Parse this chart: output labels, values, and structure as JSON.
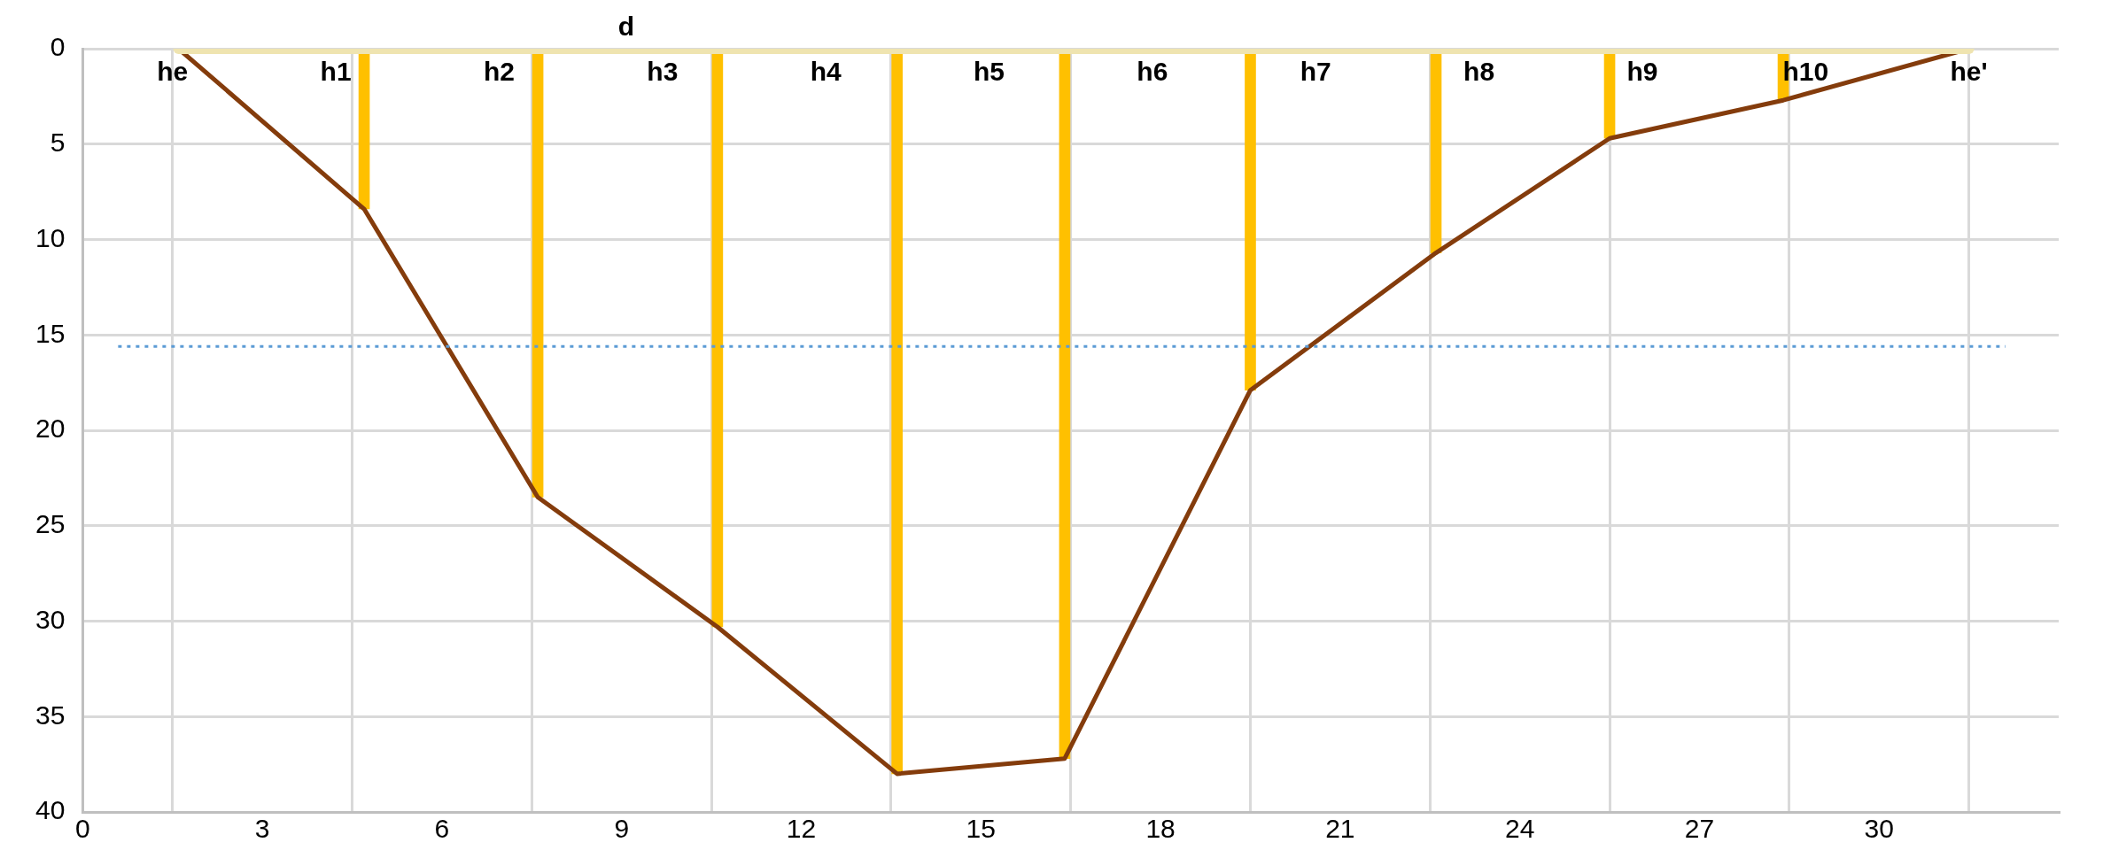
{
  "chart_data": {
    "type": "line",
    "xlim": [
      0,
      33
    ],
    "xticks": [
      0,
      3,
      6,
      9,
      12,
      15,
      18,
      21,
      24,
      27,
      30
    ],
    "ylim": [
      40,
      0
    ],
    "yticks": [
      0,
      5,
      10,
      15,
      20,
      25,
      30,
      35,
      40
    ],
    "grid": true,
    "legend": false,
    "series": [
      {
        "type": "bar",
        "color": "#ffc000",
        "x": [
          4.7,
          7.6,
          10.6,
          13.6,
          16.4,
          19.5,
          22.6,
          25.5,
          28.4
        ],
        "values": [
          8.4,
          23.5,
          30.3,
          38,
          37.2,
          17.9,
          10.7,
          4.7,
          2.7
        ]
      },
      {
        "name": "d",
        "color": "#efe4b0",
        "x": [
          1.6,
          31.5
        ],
        "values": [
          0,
          0
        ]
      },
      {
        "color": "#843c0c",
        "x": [
          1.6,
          4.7,
          7.6,
          10.6,
          13.6,
          16.4,
          19.5,
          22.6,
          25.5,
          28.4,
          31.5
        ],
        "values": [
          0,
          8.4,
          23.5,
          30.3,
          38,
          37.2,
          17.9,
          10.7,
          4.7,
          2.7,
          0
        ]
      }
    ],
    "ref_lines": [
      {
        "axis": "y",
        "value": 15.6,
        "color": "#5b9bd5",
        "line_style": "dotted"
      }
    ],
    "annotations": [
      "he",
      "h1",
      "h2",
      "h3",
      "h4",
      "h5",
      "h6",
      "h7",
      "h8",
      "h9",
      "h10",
      "he'"
    ]
  }
}
